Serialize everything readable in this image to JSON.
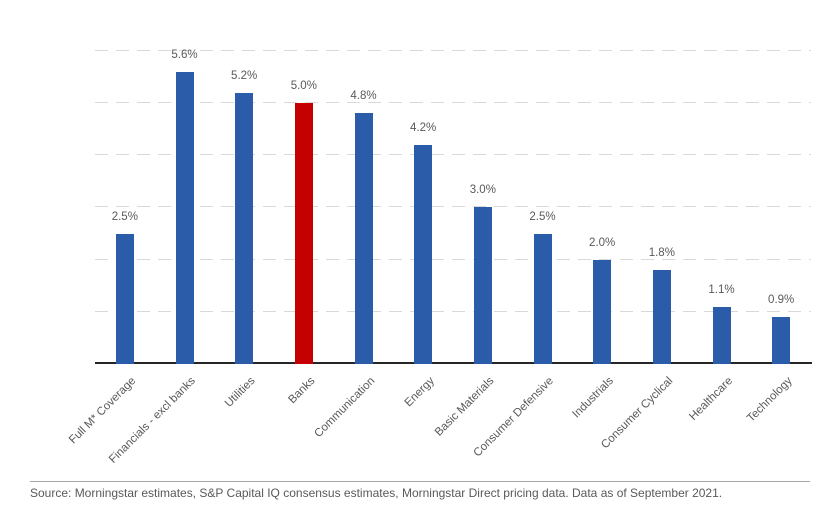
{
  "chart_data": {
    "type": "bar",
    "title": "",
    "xlabel": "",
    "ylabel": "",
    "categories": [
      "Full M* Coverage",
      "Financials - excl banks",
      "Utilities",
      "Banks",
      "Communication",
      "Energy",
      "Basic Materials",
      "Consumer Defensive",
      "Industrials",
      "Consumer Cyclical",
      "Healthcare",
      "Technology"
    ],
    "values": [
      2.5,
      5.6,
      5.2,
      5.0,
      4.8,
      4.2,
      3.0,
      2.5,
      2.0,
      1.8,
      1.1,
      0.9
    ],
    "value_labels": [
      "2.5%",
      "5.6%",
      "5.2%",
      "5.0%",
      "4.8%",
      "4.2%",
      "3.0%",
      "2.5%",
      "2.0%",
      "1.8%",
      "1.1%",
      "0.9%"
    ],
    "highlight_index": 3,
    "highlight_category": "Banks",
    "ylim": [
      0,
      6
    ],
    "gridline_step": 1,
    "grid": "horizontal-dashed",
    "legend": "none",
    "y_tick_labels_visible": false,
    "category_label_rotation_deg": 45
  },
  "colors": {
    "background": "#FFFFFF",
    "bar": "#2A5CAA",
    "highlight": "#C40000",
    "value_label": "#595959",
    "category_label": "#595959",
    "gridline": "#D9D9D9",
    "axis": "#262626",
    "divider": "#A6A6A6",
    "source_text": "#595959"
  },
  "footer": {
    "source_text": "Source: Morningstar estimates, S&P Capital IQ consensus estimates, Morningstar Direct pricing data. Data as of September 2021."
  }
}
